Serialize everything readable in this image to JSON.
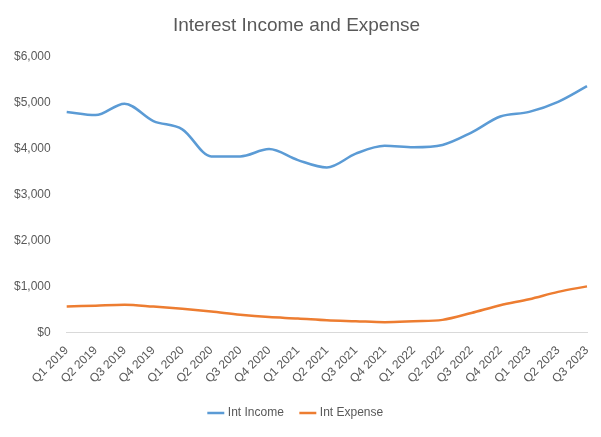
{
  "chart_data": {
    "type": "line",
    "title": "Interest Income and Expense",
    "categories": [
      "Q1 2019",
      "Q2 2019",
      "Q3 2019",
      "Q4 2019",
      "Q1 2020",
      "Q2 2020",
      "Q3 2020",
      "Q4 2020",
      "Q1 2021",
      "Q2 2021",
      "Q3 2021",
      "Q4 2021",
      "Q1 2022",
      "Q2 2022",
      "Q3 2022",
      "Q4 2022",
      "Q1 2023",
      "Q2 2023",
      "Q3 2023"
    ],
    "series": [
      {
        "name": "Int Income",
        "color": "#5b9bd5",
        "values": [
          4800,
          4730,
          4980,
          4600,
          4420,
          3830,
          3830,
          3990,
          3750,
          3590,
          3890,
          4060,
          4030,
          4080,
          4350,
          4700,
          4800,
          5020,
          5360
        ]
      },
      {
        "name": "Int Expense",
        "color": "#ed7d31",
        "values": [
          560,
          580,
          600,
          560,
          510,
          450,
          380,
          330,
          300,
          260,
          240,
          220,
          240,
          270,
          420,
          590,
          720,
          880,
          1000
        ]
      }
    ],
    "ylim": [
      0,
      6000
    ],
    "yticks": [
      {
        "value": 0,
        "label": "$0"
      },
      {
        "value": 1000,
        "label": "$1,000"
      },
      {
        "value": 2000,
        "label": "$2,000"
      },
      {
        "value": 3000,
        "label": "$3,000"
      },
      {
        "value": 4000,
        "label": "$4,000"
      },
      {
        "value": 5000,
        "label": "$5,000"
      },
      {
        "value": 6000,
        "label": "$6,000"
      }
    ],
    "grid": false,
    "legend": "bottom",
    "marker": "none",
    "line_style": "smooth"
  }
}
